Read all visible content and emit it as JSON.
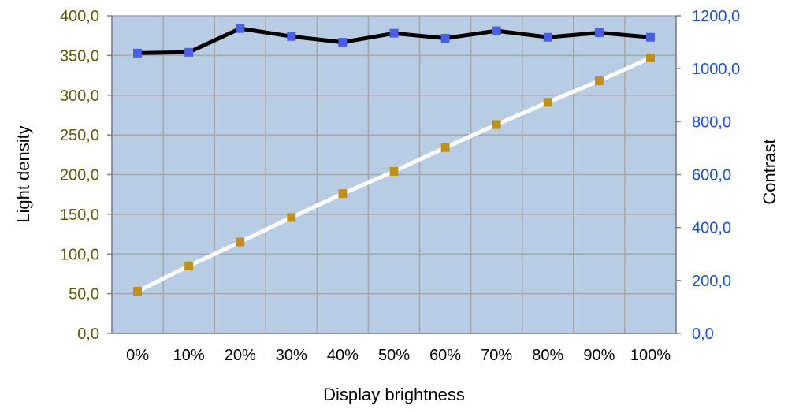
{
  "chart_data": {
    "type": "line",
    "title": "",
    "xlabel": "Display brightness",
    "ylabel_left": "Light density",
    "ylabel_right": "Contrast",
    "categories": [
      "0%",
      "10%",
      "20%",
      "30%",
      "40%",
      "50%",
      "60%",
      "70%",
      "80%",
      "90%",
      "100%"
    ],
    "ylim_left": [
      0,
      400
    ],
    "ylim_right": [
      0,
      1200
    ],
    "yticks_left": [
      "0,0",
      "50,0",
      "100,0",
      "150,0",
      "200,0",
      "250,0",
      "300,0",
      "350,0",
      "400,0"
    ],
    "yticks_right": [
      "0,0",
      "200,0",
      "400,0",
      "600,0",
      "800,0",
      "1000,0",
      "1200,0"
    ],
    "grid": true,
    "series": [
      {
        "axis": "left",
        "line_color": "#ffffff",
        "marker_color": "#c0901e",
        "values": [
          53,
          85,
          115,
          146,
          176,
          204,
          234,
          263,
          291,
          318,
          347
        ]
      },
      {
        "axis": "right",
        "line_color": "#000000",
        "marker_color": "#4a5fe8",
        "values": [
          1059,
          1062,
          1152,
          1122,
          1100,
          1134,
          1115,
          1143,
          1119,
          1136,
          1119
        ]
      }
    ],
    "colors": {
      "plot_background": "#b8cce4",
      "grid": "#a6a6a6",
      "left_tick_text": "#5b5b0f",
      "right_tick_text": "#1f4fd6"
    }
  }
}
